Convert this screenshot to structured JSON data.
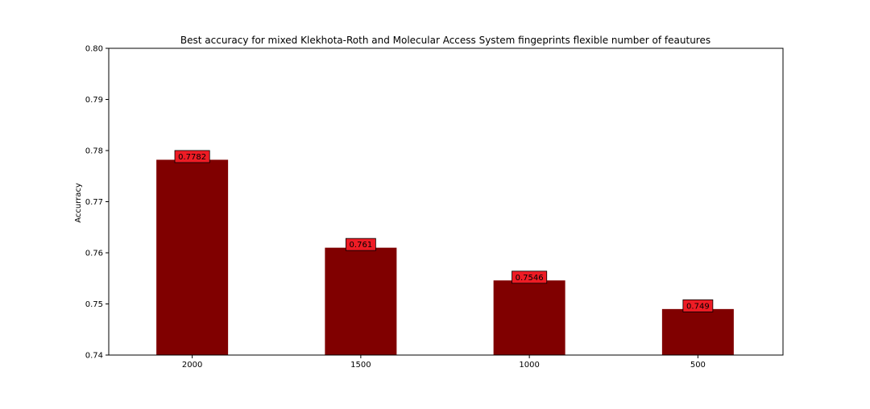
{
  "chart_data": {
    "type": "bar",
    "title": "Best accuracy for mixed Klekhota-Roth and Molecular Access System fingeprints flexible number of feautures",
    "xlabel": "",
    "ylabel": "Accurracy",
    "categories": [
      "2000",
      "1500",
      "1000",
      "500"
    ],
    "values": [
      0.7782,
      0.761,
      0.7546,
      0.749
    ],
    "data_labels": [
      "0.7782",
      "0.761",
      "0.7546",
      "0.749"
    ],
    "ylim": [
      0.74,
      0.8
    ],
    "yticks": [
      "0.74",
      "0.75",
      "0.76",
      "0.77",
      "0.78",
      "0.79",
      "0.80"
    ],
    "bar_color": "#800000",
    "label_box_color": "#ee1c25",
    "grid": false,
    "legend": "none"
  }
}
